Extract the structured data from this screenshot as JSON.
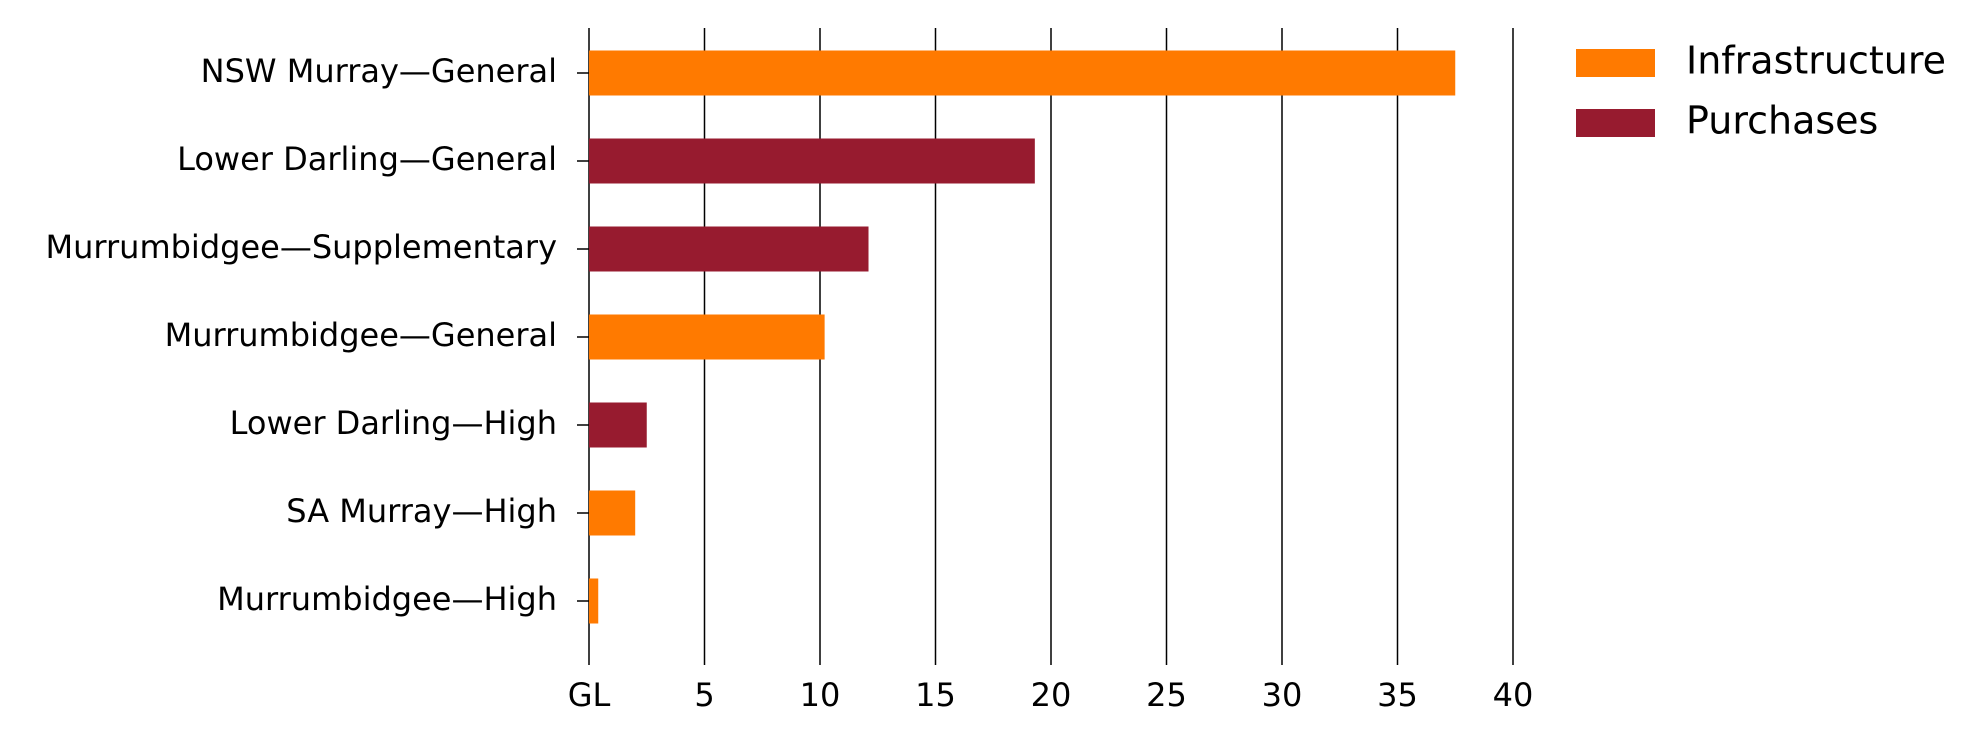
{
  "chart_data": {
    "type": "bar",
    "orientation": "horizontal",
    "categories": [
      "NSW Murray—General",
      "Lower Darling—General",
      "Murrumbidgee—Supplementary",
      "Murrumbidgee—General",
      "Lower Darling—High",
      "SA Murray—High",
      "Murrumbidgee—High"
    ],
    "series": [
      {
        "name": "Infrastructure",
        "color": "#ff7a00",
        "values": [
          37.5,
          null,
          null,
          10.2,
          null,
          2.0,
          0.4
        ]
      },
      {
        "name": "Purchases",
        "color": "#971b2f",
        "values": [
          null,
          19.3,
          12.1,
          null,
          2.5,
          null,
          null
        ]
      }
    ],
    "xlim": [
      0,
      40
    ],
    "xticks": [
      {
        "value": 0,
        "label": "GL"
      },
      5,
      10,
      15,
      20,
      25,
      30,
      35,
      40
    ],
    "grid": true,
    "legend": "top-right"
  }
}
